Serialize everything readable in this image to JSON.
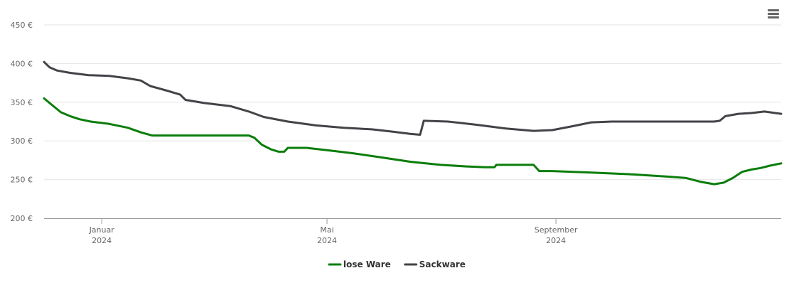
{
  "menu": {
    "icon": "hamburger-menu-icon"
  },
  "chart_data": {
    "type": "line",
    "title": "",
    "xlabel": "",
    "ylabel": "",
    "ylim": [
      200,
      450
    ],
    "xlim": [
      "2023-12-01",
      "2024-12-31"
    ],
    "y_ticks": [
      {
        "value": 200,
        "label": "200 €"
      },
      {
        "value": 250,
        "label": "250 €"
      },
      {
        "value": 300,
        "label": "300 €"
      },
      {
        "value": 350,
        "label": "350 €"
      },
      {
        "value": 400,
        "label": "400 €"
      },
      {
        "value": 450,
        "label": "450 €"
      }
    ],
    "x_ticks": [
      {
        "date": "2024-01-01",
        "label": "Januar",
        "year": "2024"
      },
      {
        "date": "2024-05-01",
        "label": "Mai",
        "year": "2024"
      },
      {
        "date": "2024-09-01",
        "label": "September",
        "year": "2024"
      }
    ],
    "grid": "horizontal",
    "legend": "bottom",
    "series": [
      {
        "name": "lose Ware",
        "color": "#0a7d0a",
        "points": [
          [
            "2023-12-01",
            355
          ],
          [
            "2023-12-05",
            347
          ],
          [
            "2023-12-10",
            337
          ],
          [
            "2023-12-15",
            332
          ],
          [
            "2023-12-20",
            328
          ],
          [
            "2023-12-26",
            325
          ],
          [
            "2024-01-05",
            322
          ],
          [
            "2024-01-15",
            317
          ],
          [
            "2024-01-22",
            311
          ],
          [
            "2024-01-28",
            307
          ],
          [
            "2024-02-15",
            307
          ],
          [
            "2024-03-10",
            307
          ],
          [
            "2024-03-20",
            307
          ],
          [
            "2024-03-23",
            304
          ],
          [
            "2024-03-27",
            295
          ],
          [
            "2024-04-01",
            289
          ],
          [
            "2024-04-05",
            286
          ],
          [
            "2024-04-08",
            286
          ],
          [
            "2024-04-10",
            291
          ],
          [
            "2024-04-20",
            291
          ],
          [
            "2024-05-01",
            288
          ],
          [
            "2024-05-15",
            284
          ],
          [
            "2024-06-01",
            278
          ],
          [
            "2024-06-15",
            273
          ],
          [
            "2024-07-01",
            269
          ],
          [
            "2024-07-15",
            267
          ],
          [
            "2024-07-25",
            266
          ],
          [
            "2024-07-30",
            266
          ],
          [
            "2024-07-31",
            269
          ],
          [
            "2024-08-20",
            269
          ],
          [
            "2024-08-23",
            261
          ],
          [
            "2024-08-30",
            261
          ],
          [
            "2024-09-10",
            260
          ],
          [
            "2024-09-20",
            259
          ],
          [
            "2024-10-10",
            257
          ],
          [
            "2024-10-30",
            254
          ],
          [
            "2024-11-10",
            252
          ],
          [
            "2024-11-18",
            247
          ],
          [
            "2024-11-25",
            244
          ],
          [
            "2024-11-30",
            246
          ],
          [
            "2024-12-05",
            252
          ],
          [
            "2024-12-10",
            260
          ],
          [
            "2024-12-15",
            263
          ],
          [
            "2024-12-20",
            265
          ],
          [
            "2024-12-25",
            268
          ],
          [
            "2024-12-31",
            271
          ]
        ]
      },
      {
        "name": "Sackware",
        "color": "#434348",
        "points": [
          [
            "2023-12-01",
            402
          ],
          [
            "2023-12-04",
            395
          ],
          [
            "2023-12-08",
            391
          ],
          [
            "2023-12-15",
            388
          ],
          [
            "2023-12-25",
            385
          ],
          [
            "2024-01-05",
            384
          ],
          [
            "2024-01-15",
            381
          ],
          [
            "2024-01-22",
            378
          ],
          [
            "2024-01-27",
            371
          ],
          [
            "2024-02-05",
            365
          ],
          [
            "2024-02-12",
            360
          ],
          [
            "2024-02-15",
            353
          ],
          [
            "2024-02-25",
            349
          ],
          [
            "2024-03-10",
            345
          ],
          [
            "2024-03-20",
            338
          ],
          [
            "2024-03-28",
            331
          ],
          [
            "2024-04-10",
            325
          ],
          [
            "2024-04-25",
            320
          ],
          [
            "2024-05-10",
            317
          ],
          [
            "2024-05-25",
            315
          ],
          [
            "2024-06-05",
            312
          ],
          [
            "2024-06-15",
            309
          ],
          [
            "2024-06-20",
            308
          ],
          [
            "2024-06-22",
            326
          ],
          [
            "2024-07-05",
            325
          ],
          [
            "2024-07-20",
            321
          ],
          [
            "2024-08-05",
            316
          ],
          [
            "2024-08-20",
            313
          ],
          [
            "2024-08-30",
            314
          ],
          [
            "2024-09-10",
            319
          ],
          [
            "2024-09-20",
            324
          ],
          [
            "2024-10-01",
            325
          ],
          [
            "2024-10-30",
            325
          ],
          [
            "2024-11-15",
            325
          ],
          [
            "2024-11-25",
            325
          ],
          [
            "2024-11-28",
            326
          ],
          [
            "2024-12-01",
            332
          ],
          [
            "2024-12-08",
            335
          ],
          [
            "2024-12-15",
            336
          ],
          [
            "2024-12-22",
            338
          ],
          [
            "2024-12-31",
            335
          ]
        ]
      }
    ]
  }
}
